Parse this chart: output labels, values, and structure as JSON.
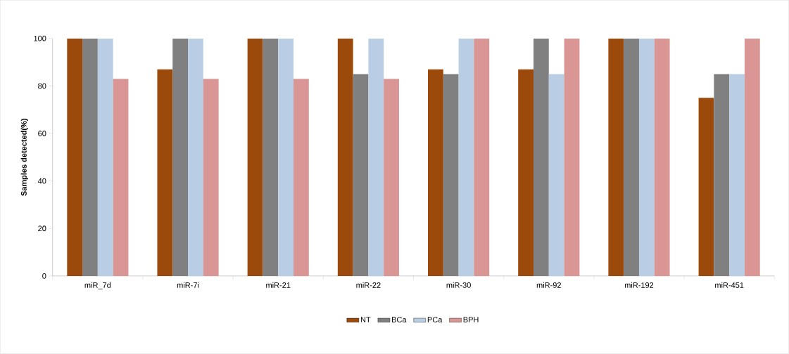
{
  "chart_data": {
    "type": "bar",
    "ylabel": "Samples detected(%)",
    "categories": [
      "miR_7d",
      "miR-7i",
      "miR-21",
      "miR-22",
      "miR-30",
      "miR-92",
      "miR-192",
      "miR-451"
    ],
    "series": [
      {
        "name": "NT",
        "color": "#9c4a0b",
        "values": [
          100,
          87,
          100,
          100,
          87,
          87,
          100,
          75
        ]
      },
      {
        "name": "BCa",
        "color": "#808080",
        "values": [
          100,
          100,
          100,
          85,
          85,
          100,
          100,
          85
        ]
      },
      {
        "name": "PCa",
        "color": "#b9cde5",
        "values": [
          100,
          100,
          100,
          100,
          100,
          85,
          100,
          85
        ]
      },
      {
        "name": "BPH",
        "color": "#d99694",
        "values": [
          83,
          83,
          83,
          83,
          100,
          100,
          100,
          100
        ]
      }
    ],
    "ylim": [
      0,
      100
    ],
    "yticks": [
      0,
      20,
      40,
      60,
      80,
      100
    ],
    "grid": false,
    "legend": "bottom"
  }
}
